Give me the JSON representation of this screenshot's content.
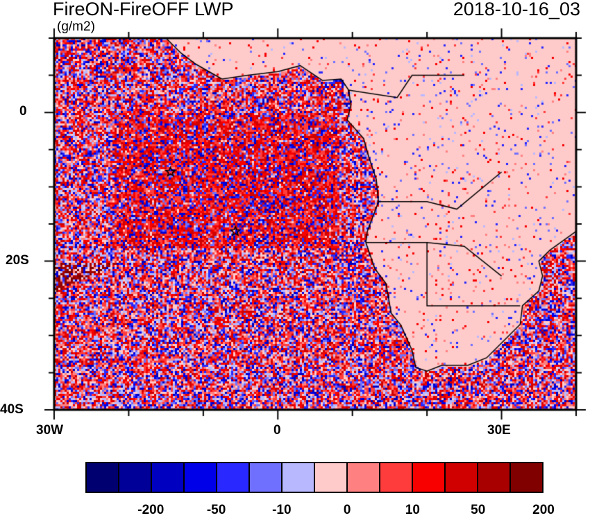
{
  "title": "FireON-FireOFF LWP",
  "units": "(g/m2)",
  "date": "2018-10-16_03",
  "map": {
    "extent": {
      "lon": [
        -30,
        40
      ],
      "lat": [
        -40,
        10
      ]
    },
    "lon_labels": [
      {
        "lon": -30,
        "text": "30W"
      },
      {
        "lon": 0,
        "text": "0"
      },
      {
        "lon": 30,
        "text": "30E"
      }
    ],
    "lat_labels": [
      {
        "lat": 0,
        "text": "0"
      },
      {
        "lat": -20,
        "text": "20S"
      },
      {
        "lat": -40,
        "text": "40S"
      }
    ],
    "markers": [
      {
        "type": "star",
        "lon": -14.4,
        "lat": -8
      },
      {
        "type": "star",
        "lon": -5.7,
        "lat": -16
      }
    ]
  },
  "colorbar": {
    "colors": [
      "#000070",
      "#000098",
      "#0000c0",
      "#0000e8",
      "#2828ff",
      "#7070ff",
      "#b8b8ff",
      "#ffcaca",
      "#ff8080",
      "#ff3c3c",
      "#f80000",
      "#d00000",
      "#a80000",
      "#800000"
    ],
    "labels": [
      "-200",
      "-50",
      "-10",
      "0",
      "10",
      "50",
      "200"
    ]
  }
}
